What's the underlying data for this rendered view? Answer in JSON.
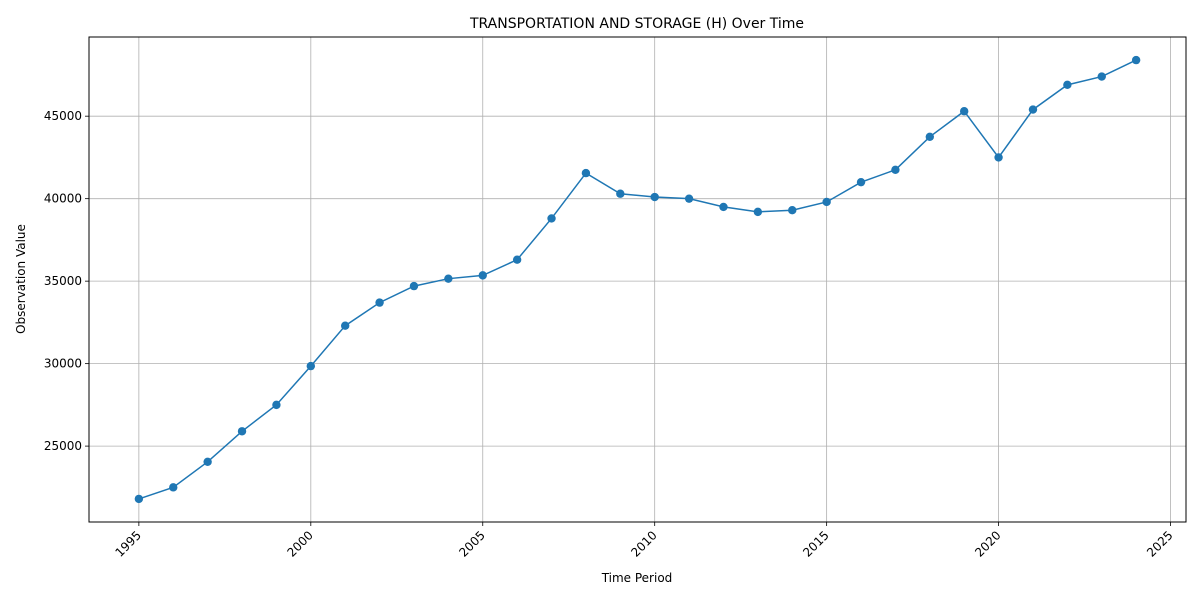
{
  "chart_data": {
    "type": "line",
    "title": "TRANSPORTATION AND STORAGE (H) Over Time",
    "xlabel": "Time Period",
    "ylabel": "Observation Value",
    "xlim": [
      1993.55,
      2025.45
    ],
    "ylim": [
      20400,
      49800
    ],
    "x_ticks": [
      1995,
      2000,
      2005,
      2010,
      2015,
      2020,
      2025
    ],
    "y_ticks": [
      25000,
      30000,
      35000,
      40000,
      45000
    ],
    "grid": true,
    "legend": "none",
    "series": [
      {
        "color": "#1f77b4",
        "marker": "circle",
        "x": [
          1995,
          1996,
          1997,
          1998,
          1999,
          2000,
          2001,
          2002,
          2003,
          2004,
          2005,
          2006,
          2007,
          2008,
          2009,
          2010,
          2011,
          2012,
          2013,
          2014,
          2015,
          2016,
          2017,
          2018,
          2019,
          2020,
          2021,
          2022,
          2023,
          2024
        ],
        "y": [
          21800,
          22500,
          24050,
          25900,
          27500,
          29850,
          32300,
          33700,
          34700,
          35150,
          35350,
          36300,
          38800,
          41550,
          40300,
          40100,
          40000,
          39500,
          39200,
          39300,
          39800,
          41000,
          41750,
          43750,
          45300,
          42500,
          45400,
          46900,
          47400,
          48400
        ]
      }
    ]
  }
}
